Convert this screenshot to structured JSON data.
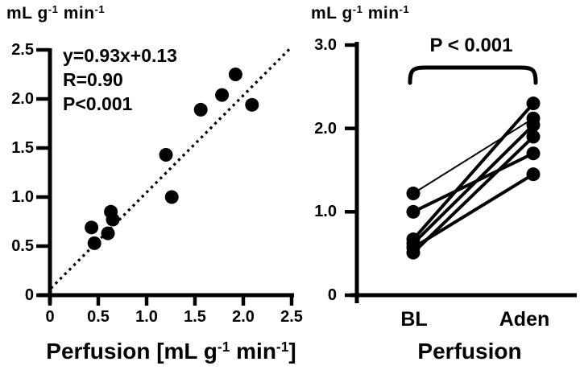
{
  "figure": {
    "left_panel": {
      "y_axis_title": {
        "pre": "mL g",
        "sup1": "-1",
        "mid": " min",
        "sup2": "-1"
      },
      "annotation": {
        "equation": "y=0.93x+0.13",
        "r_value": "R=0.90",
        "p_value": "P<0.001"
      },
      "y_ticks": [
        "2.5",
        "2.0",
        "1.5",
        "1.0",
        "0.5",
        "0"
      ],
      "x_ticks": [
        "0",
        "0.5",
        "1.0",
        "1.5",
        "2.0",
        "2.5"
      ],
      "x_axis_title": {
        "pre": "Perfusion [mL g",
        "sup1": "-1",
        "mid": " min",
        "sup2": "-1",
        "post": "]"
      }
    },
    "right_panel": {
      "y_axis_title": {
        "pre": "mL g",
        "sup1": "-1",
        "mid": " min",
        "sup2": "-1"
      },
      "p_label": "P < 0.001",
      "y_ticks": [
        "3.0",
        "2.0",
        "1.0",
        "0"
      ],
      "x_categories": [
        "BL",
        "Aden"
      ],
      "x_axis_title": "Perfusion"
    }
  },
  "chart_data": [
    {
      "type": "scatter",
      "title": "",
      "xlabel": "Perfusion [mL g-1 min-1]",
      "ylabel": "mL g-1 min-1",
      "xlim": [
        0,
        2.5
      ],
      "ylim": [
        0,
        2.5
      ],
      "x_tick_values": [
        0,
        0.5,
        1.0,
        1.5,
        2.0,
        2.5
      ],
      "y_tick_values": [
        2.5,
        2.0,
        1.5,
        1.0,
        0.5,
        0
      ],
      "grid": false,
      "points": [
        [
          0.43,
          0.69
        ],
        [
          0.46,
          0.53
        ],
        [
          0.6,
          0.63
        ],
        [
          0.63,
          0.85
        ],
        [
          0.65,
          0.77
        ],
        [
          1.2,
          1.43
        ],
        [
          1.26,
          1.0
        ],
        [
          1.56,
          1.89
        ],
        [
          1.78,
          2.04
        ],
        [
          1.92,
          2.25
        ],
        [
          2.09,
          1.94
        ]
      ],
      "fit_line": {
        "equation": "y=0.93x+0.13",
        "R": 0.9,
        "p": "P<0.001",
        "style": "dotted",
        "x1": 0.01,
        "y1": 0.07,
        "x2": 2.49,
        "y2": 2.52
      },
      "annotation_lines": [
        "y=0.93x+0.13",
        "R=0.90",
        "P<0.001"
      ]
    },
    {
      "type": "line",
      "title": "",
      "xlabel": "Perfusion",
      "ylabel": "mL g-1 min-1",
      "categories": [
        "BL",
        "Aden"
      ],
      "ylim": [
        0,
        3.0
      ],
      "y_tick_values": [
        3.0,
        2.0,
        1.0,
        0
      ],
      "grid": false,
      "p_label": "P < 0.001",
      "pairs": [
        {
          "values": [
            1.22,
            2.12
          ],
          "weight": "thin"
        },
        {
          "values": [
            1.0,
            1.7
          ],
          "weight": "thick"
        },
        {
          "values": [
            0.67,
            2.3
          ],
          "weight": "thick"
        },
        {
          "values": [
            0.62,
            2.04
          ],
          "weight": "thick"
        },
        {
          "values": [
            0.57,
            1.45
          ],
          "weight": "thick"
        },
        {
          "values": [
            0.51,
            1.9
          ],
          "weight": "thick"
        }
      ]
    }
  ],
  "colors": {
    "foreground": "#000000",
    "background": "#ffffff"
  }
}
